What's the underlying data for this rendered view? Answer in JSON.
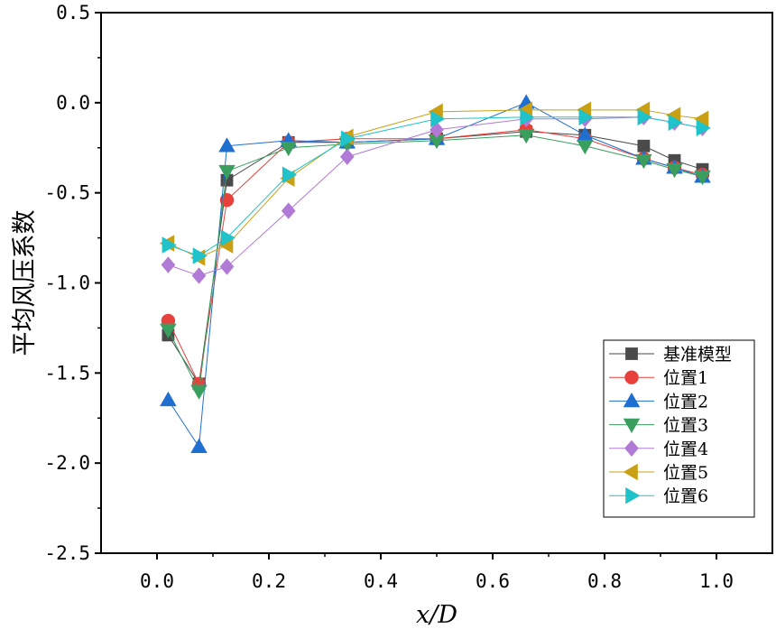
{
  "chart_data": {
    "type": "line",
    "xlabel": "x/D",
    "ylabel": "平均风压系数",
    "xlim": [
      -0.1,
      1.1
    ],
    "ylim": [
      -2.5,
      0.5
    ],
    "xticks": [
      "0.0",
      "0.2",
      "0.4",
      "0.6",
      "0.8",
      "1.0"
    ],
    "yticks": [
      "0.5",
      "0.0",
      "-0.5",
      "-1.0",
      "-1.5",
      "-2.0",
      "-2.5"
    ],
    "grid": false,
    "legend_position": "bottom-right",
    "series": [
      {
        "name": "基准模型",
        "marker": "square",
        "color": "#4a4a4a",
        "x": [
          0.02,
          0.075,
          0.125,
          0.235,
          0.34,
          0.5,
          0.66,
          0.765,
          0.87,
          0.925,
          0.975
        ],
        "y": [
          -1.29,
          -1.56,
          -0.43,
          -0.22,
          -0.22,
          -0.2,
          -0.16,
          -0.18,
          -0.24,
          -0.32,
          -0.37
        ]
      },
      {
        "name": "位置1",
        "marker": "circle",
        "color": "#e8413c",
        "x": [
          0.02,
          0.075,
          0.125,
          0.235,
          0.34,
          0.5,
          0.66,
          0.765,
          0.87,
          0.925,
          0.975
        ],
        "y": [
          -1.21,
          -1.56,
          -0.54,
          -0.22,
          -0.2,
          -0.2,
          -0.15,
          -0.2,
          -0.31,
          -0.36,
          -0.4
        ]
      },
      {
        "name": "位置2",
        "marker": "triangle-up",
        "color": "#1f6fd1",
        "x": [
          0.02,
          0.075,
          0.125,
          0.235,
          0.34,
          0.5,
          0.66,
          0.765,
          0.87,
          0.925,
          0.975
        ],
        "y": [
          -1.65,
          -1.91,
          -0.24,
          -0.21,
          -0.22,
          -0.2,
          0.0,
          -0.18,
          -0.31,
          -0.36,
          -0.41
        ]
      },
      {
        "name": "位置3",
        "marker": "triangle-down",
        "color": "#3a9e5e",
        "x": [
          0.02,
          0.075,
          0.125,
          0.235,
          0.34,
          0.5,
          0.66,
          0.765,
          0.87,
          0.925,
          0.975
        ],
        "y": [
          -1.26,
          -1.6,
          -0.38,
          -0.25,
          -0.23,
          -0.21,
          -0.18,
          -0.24,
          -0.32,
          -0.37,
          -0.41
        ]
      },
      {
        "name": "位置4",
        "marker": "diamond",
        "color": "#b07ad6",
        "x": [
          0.02,
          0.075,
          0.125,
          0.235,
          0.34,
          0.5,
          0.66,
          0.765,
          0.87,
          0.925,
          0.975
        ],
        "y": [
          -0.9,
          -0.96,
          -0.91,
          -0.6,
          -0.3,
          -0.15,
          -0.09,
          -0.09,
          -0.08,
          -0.11,
          -0.14
        ]
      },
      {
        "name": "位置5",
        "marker": "triangle-left",
        "color": "#c9a014",
        "x": [
          0.02,
          0.075,
          0.125,
          0.235,
          0.34,
          0.5,
          0.66,
          0.765,
          0.87,
          0.925,
          0.975
        ],
        "y": [
          -0.78,
          -0.86,
          -0.79,
          -0.42,
          -0.19,
          -0.05,
          -0.04,
          -0.04,
          -0.04,
          -0.07,
          -0.09
        ]
      },
      {
        "name": "位置6",
        "marker": "triangle-right",
        "color": "#1fc3c9",
        "x": [
          0.02,
          0.075,
          0.125,
          0.235,
          0.34,
          0.5,
          0.66,
          0.765,
          0.87,
          0.925,
          0.975
        ],
        "y": [
          -0.79,
          -0.85,
          -0.75,
          -0.4,
          -0.2,
          -0.09,
          -0.08,
          -0.08,
          -0.08,
          -0.11,
          -0.14
        ]
      }
    ]
  }
}
